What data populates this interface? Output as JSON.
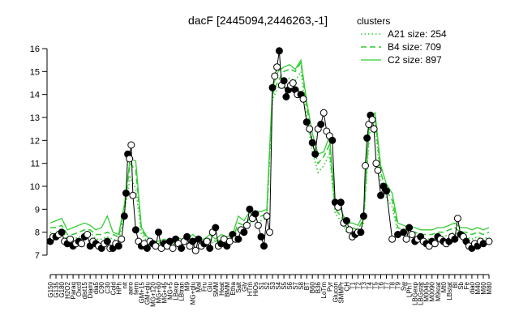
{
  "chart_data": {
    "type": "line",
    "title": "dacF [2445094,2446263,-1]",
    "xlabel": "",
    "ylabel": "",
    "ylim": [
      7,
      16
    ],
    "yticks": [
      7,
      8,
      9,
      10,
      11,
      12,
      13,
      14,
      15,
      16
    ],
    "grid": false,
    "legend_position": "top-right",
    "legend_title": "clusters",
    "colors": {
      "series": "#33cc33",
      "point_fill": "#000000",
      "point_hollow": "#ffffff",
      "axis": "#000000"
    },
    "x_tick_labels": [
      "G150",
      "G135",
      "G180",
      "H2O2",
      "Paraq",
      "Oxctl",
      "dist15",
      "Diami",
      "dia5",
      "C90",
      "C30",
      "Cold",
      "HPh",
      "nit",
      "aero",
      "ferm",
      "GM+15",
      "GM+glu",
      "MG+120",
      "MG+60",
      "MG+45",
      "MG+5",
      "LBexp",
      "LBtran",
      "M9",
      "MG+glu",
      "Mal",
      "Fru",
      "Glu",
      "SMM",
      "Heat",
      "BMM",
      "Etha",
      "Salt",
      "Gly",
      "HTm",
      "HiOs",
      "S1",
      "S2",
      "S3",
      "S4",
      "S5",
      "S6",
      "S7",
      "S8",
      "BT",
      "B60",
      "B36",
      "LoTm",
      "Pyr",
      "Glucon",
      "SMMPr",
      "CH",
      "T1",
      "T2",
      "T3",
      "T4",
      "T5",
      "T6",
      "T7",
      "T8",
      "T9",
      "Sw",
      "LPhT",
      "LBGexp",
      "LBGstat",
      "M0045",
      "M0090",
      "M9stat",
      "Mt0",
      "LBstat",
      "BI",
      "Sb",
      "Fe",
      "dia0",
      "M40",
      "M60",
      "M80"
    ],
    "series": [
      {
        "name": "A21 size: 254",
        "style": "dotted",
        "values": [
          8.0,
          7.9,
          8.1,
          7.7,
          7.7,
          7.8,
          7.9,
          8.0,
          7.7,
          7.7,
          7.8,
          7.7,
          7.6,
          8.8,
          10.4,
          9.9,
          7.9,
          7.6,
          7.4,
          7.4,
          7.5,
          7.4,
          7.5,
          7.5,
          7.5,
          7.6,
          7.5,
          7.5,
          7.6,
          7.5,
          7.6,
          7.6,
          7.6,
          8.2,
          8.1,
          8.4,
          8.5,
          8.5,
          8.6,
          13.8,
          14.3,
          14.6,
          14.7,
          14.6,
          15.0,
          13.0,
          11.5,
          10.6,
          10.9,
          11.4,
          8.8,
          8.5,
          8.0,
          8.0,
          7.9,
          8.4,
          12.3,
          12.7,
          10.2,
          9.5,
          9.1,
          8.0,
          7.9,
          7.8,
          7.8,
          7.7,
          7.7,
          7.7,
          7.8,
          7.8,
          7.9,
          8.0,
          7.8,
          7.8,
          7.7,
          7.8,
          7.7,
          7.8
        ]
      },
      {
        "name": "B4 size: 709",
        "style": "dashed",
        "values": [
          8.2,
          8.2,
          8.3,
          7.9,
          7.9,
          8.0,
          8.1,
          8.1,
          7.9,
          7.9,
          8.0,
          7.9,
          7.8,
          9.0,
          11.0,
          10.7,
          8.1,
          7.7,
          7.5,
          7.5,
          7.6,
          7.5,
          7.6,
          7.6,
          7.6,
          7.7,
          7.6,
          7.6,
          7.7,
          7.6,
          7.7,
          7.7,
          7.7,
          8.4,
          8.3,
          8.6,
          8.7,
          8.7,
          8.8,
          14.0,
          14.6,
          15.0,
          15.1,
          15.0,
          15.4,
          13.5,
          11.9,
          11.0,
          11.3,
          11.8,
          9.0,
          8.7,
          8.2,
          8.2,
          8.1,
          8.6,
          12.6,
          13.0,
          10.6,
          9.8,
          9.4,
          8.2,
          8.1,
          8.0,
          8.0,
          7.9,
          7.9,
          7.9,
          8.0,
          8.0,
          8.1,
          8.2,
          8.0,
          8.0,
          7.9,
          8.0,
          7.9,
          8.0
        ]
      },
      {
        "name": "C2 size: 897",
        "style": "solid",
        "values": [
          8.4,
          8.5,
          8.6,
          8.1,
          8.2,
          8.3,
          8.4,
          8.3,
          8.1,
          8.2,
          8.7,
          8.0,
          7.9,
          9.2,
          11.2,
          11.1,
          8.2,
          7.8,
          7.6,
          7.6,
          7.7,
          7.6,
          7.8,
          7.7,
          7.7,
          7.9,
          7.7,
          7.7,
          7.9,
          7.7,
          7.9,
          7.8,
          7.9,
          8.7,
          8.5,
          8.9,
          8.9,
          8.9,
          9.0,
          14.3,
          15.0,
          15.2,
          15.3,
          15.1,
          15.5,
          13.7,
          12.3,
          11.4,
          11.5,
          12.2,
          9.2,
          9.0,
          8.4,
          8.4,
          8.3,
          8.8,
          12.9,
          13.2,
          10.9,
          10.1,
          9.7,
          8.4,
          8.3,
          8.2,
          8.2,
          8.1,
          8.1,
          8.1,
          8.2,
          8.2,
          8.3,
          8.4,
          8.2,
          8.2,
          8.1,
          8.2,
          8.1,
          8.2
        ]
      }
    ],
    "points": [
      {
        "x": 0,
        "y": 7.6,
        "f": 1
      },
      {
        "x": 0.5,
        "y": 7.8,
        "f": 0
      },
      {
        "x": 1,
        "y": 7.8,
        "f": 1
      },
      {
        "x": 1.5,
        "y": 7.9,
        "f": 0
      },
      {
        "x": 2,
        "y": 8.0,
        "f": 1
      },
      {
        "x": 2.5,
        "y": 7.6,
        "f": 0
      },
      {
        "x": 3,
        "y": 7.5,
        "f": 1
      },
      {
        "x": 3.5,
        "y": 7.7,
        "f": 0
      },
      {
        "x": 4,
        "y": 7.4,
        "f": 1
      },
      {
        "x": 4.5,
        "y": 7.5,
        "f": 0
      },
      {
        "x": 5,
        "y": 7.6,
        "f": 1
      },
      {
        "x": 5.5,
        "y": 7.5,
        "f": 0
      },
      {
        "x": 6,
        "y": 7.8,
        "f": 1
      },
      {
        "x": 6.5,
        "y": 7.9,
        "f": 0
      },
      {
        "x": 7,
        "y": 7.4,
        "f": 1
      },
      {
        "x": 7.5,
        "y": 7.6,
        "f": 0
      },
      {
        "x": 8,
        "y": 7.5,
        "f": 1
      },
      {
        "x": 8.5,
        "y": 7.4,
        "f": 0
      },
      {
        "x": 9,
        "y": 7.3,
        "f": 1
      },
      {
        "x": 9.5,
        "y": 7.5,
        "f": 0
      },
      {
        "x": 10,
        "y": 7.6,
        "f": 1
      },
      {
        "x": 10.5,
        "y": 7.3,
        "f": 0
      },
      {
        "x": 11,
        "y": 7.3,
        "f": 1
      },
      {
        "x": 11.5,
        "y": 7.5,
        "f": 0
      },
      {
        "x": 12,
        "y": 7.4,
        "f": 1
      },
      {
        "x": 12.5,
        "y": 7.7,
        "f": 0
      },
      {
        "x": 13,
        "y": 8.7,
        "f": 1
      },
      {
        "x": 13.3,
        "y": 9.7,
        "f": 1
      },
      {
        "x": 13.6,
        "y": 11.4,
        "f": 1
      },
      {
        "x": 13.9,
        "y": 11.2,
        "f": 0
      },
      {
        "x": 14.2,
        "y": 11.8,
        "f": 0
      },
      {
        "x": 14.5,
        "y": 9.6,
        "f": 0
      },
      {
        "x": 15,
        "y": 8.1,
        "f": 1
      },
      {
        "x": 15.5,
        "y": 7.6,
        "f": 0
      },
      {
        "x": 16,
        "y": 7.4,
        "f": 1
      },
      {
        "x": 16.5,
        "y": 7.5,
        "f": 0
      },
      {
        "x": 17,
        "y": 7.3,
        "f": 1
      },
      {
        "x": 17.5,
        "y": 7.6,
        "f": 0
      },
      {
        "x": 18,
        "y": 7.5,
        "f": 1
      },
      {
        "x": 18.5,
        "y": 7.4,
        "f": 0
      },
      {
        "x": 19,
        "y": 8.0,
        "f": 1
      },
      {
        "x": 19.5,
        "y": 7.3,
        "f": 0
      },
      {
        "x": 20,
        "y": 7.5,
        "f": 1
      },
      {
        "x": 20.5,
        "y": 7.4,
        "f": 0
      },
      {
        "x": 21,
        "y": 7.6,
        "f": 1
      },
      {
        "x": 21.5,
        "y": 7.3,
        "f": 0
      },
      {
        "x": 22,
        "y": 7.7,
        "f": 1
      },
      {
        "x": 22.5,
        "y": 7.5,
        "f": 0
      },
      {
        "x": 23,
        "y": 7.3,
        "f": 1
      },
      {
        "x": 23.5,
        "y": 7.6,
        "f": 0
      },
      {
        "x": 24,
        "y": 7.8,
        "f": 1
      },
      {
        "x": 24.5,
        "y": 7.4,
        "f": 0
      },
      {
        "x": 25,
        "y": 7.6,
        "f": 1
      },
      {
        "x": 25.5,
        "y": 7.2,
        "f": 0
      },
      {
        "x": 26,
        "y": 7.7,
        "f": 1
      },
      {
        "x": 26.5,
        "y": 7.4,
        "f": 0
      },
      {
        "x": 27,
        "y": 7.5,
        "f": 1
      },
      {
        "x": 27.5,
        "y": 7.6,
        "f": 0
      },
      {
        "x": 28,
        "y": 7.3,
        "f": 1
      },
      {
        "x": 28.5,
        "y": 8.0,
        "f": 0
      },
      {
        "x": 29,
        "y": 8.2,
        "f": 1
      },
      {
        "x": 29.5,
        "y": 7.4,
        "f": 0
      },
      {
        "x": 30,
        "y": 7.5,
        "f": 1
      },
      {
        "x": 30.5,
        "y": 7.7,
        "f": 0
      },
      {
        "x": 31,
        "y": 7.4,
        "f": 1
      },
      {
        "x": 31.5,
        "y": 7.6,
        "f": 0
      },
      {
        "x": 32,
        "y": 7.9,
        "f": 1
      },
      {
        "x": 32.5,
        "y": 7.7,
        "f": 0
      },
      {
        "x": 33,
        "y": 7.7,
        "f": 1
      },
      {
        "x": 33.5,
        "y": 8.1,
        "f": 0
      },
      {
        "x": 34,
        "y": 8.0,
        "f": 1
      },
      {
        "x": 34.5,
        "y": 8.3,
        "f": 0
      },
      {
        "x": 35,
        "y": 9.0,
        "f": 1
      },
      {
        "x": 35.5,
        "y": 8.6,
        "f": 0
      },
      {
        "x": 36,
        "y": 8.8,
        "f": 1
      },
      {
        "x": 36.5,
        "y": 8.3,
        "f": 0
      },
      {
        "x": 37,
        "y": 7.8,
        "f": 1
      },
      {
        "x": 37.5,
        "y": 7.4,
        "f": 1
      },
      {
        "x": 38,
        "y": 8.7,
        "f": 0
      },
      {
        "x": 38.5,
        "y": 8.0,
        "f": 0
      },
      {
        "x": 39,
        "y": 14.3,
        "f": 1
      },
      {
        "x": 39.4,
        "y": 14.8,
        "f": 0
      },
      {
        "x": 39.8,
        "y": 15.2,
        "f": 0
      },
      {
        "x": 40.2,
        "y": 15.9,
        "f": 1
      },
      {
        "x": 40.6,
        "y": 14.4,
        "f": 0
      },
      {
        "x": 41,
        "y": 14.6,
        "f": 1
      },
      {
        "x": 41.4,
        "y": 13.9,
        "f": 1
      },
      {
        "x": 41.8,
        "y": 14.2,
        "f": 1
      },
      {
        "x": 42.2,
        "y": 14.4,
        "f": 0
      },
      {
        "x": 42.6,
        "y": 14.5,
        "f": 0
      },
      {
        "x": 43,
        "y": 14.2,
        "f": 1
      },
      {
        "x": 43.4,
        "y": 14.0,
        "f": 0
      },
      {
        "x": 44,
        "y": 14.0,
        "f": 1
      },
      {
        "x": 44.4,
        "y": 13.8,
        "f": 0
      },
      {
        "x": 45,
        "y": 12.8,
        "f": 1
      },
      {
        "x": 45.5,
        "y": 12.5,
        "f": 0
      },
      {
        "x": 46,
        "y": 11.9,
        "f": 1
      },
      {
        "x": 46.5,
        "y": 11.4,
        "f": 1
      },
      {
        "x": 47,
        "y": 12.5,
        "f": 0
      },
      {
        "x": 47.5,
        "y": 12.7,
        "f": 1
      },
      {
        "x": 48,
        "y": 13.2,
        "f": 0
      },
      {
        "x": 48.5,
        "y": 12.4,
        "f": 0
      },
      {
        "x": 49,
        "y": 12.2,
        "f": 0
      },
      {
        "x": 49.5,
        "y": 12.0,
        "f": 1
      },
      {
        "x": 50,
        "y": 9.3,
        "f": 1
      },
      {
        "x": 50.5,
        "y": 9.1,
        "f": 0
      },
      {
        "x": 51,
        "y": 9.3,
        "f": 1
      },
      {
        "x": 51.5,
        "y": 8.4,
        "f": 0
      },
      {
        "x": 52,
        "y": 8.5,
        "f": 1
      },
      {
        "x": 52.5,
        "y": 8.1,
        "f": 0
      },
      {
        "x": 53,
        "y": 7.8,
        "f": 0
      },
      {
        "x": 53.5,
        "y": 7.9,
        "f": 1
      },
      {
        "x": 54,
        "y": 8.0,
        "f": 0
      },
      {
        "x": 54.5,
        "y": 8.0,
        "f": 1
      },
      {
        "x": 55,
        "y": 8.7,
        "f": 1
      },
      {
        "x": 55.3,
        "y": 10.9,
        "f": 0
      },
      {
        "x": 55.6,
        "y": 12.1,
        "f": 1
      },
      {
        "x": 55.9,
        "y": 12.7,
        "f": 0
      },
      {
        "x": 56.2,
        "y": 13.1,
        "f": 1
      },
      {
        "x": 56.5,
        "y": 12.9,
        "f": 0
      },
      {
        "x": 56.8,
        "y": 12.5,
        "f": 0
      },
      {
        "x": 57.2,
        "y": 11.0,
        "f": 0
      },
      {
        "x": 57.5,
        "y": 10.7,
        "f": 0
      },
      {
        "x": 58,
        "y": 9.6,
        "f": 1
      },
      {
        "x": 58.5,
        "y": 10.0,
        "f": 1
      },
      {
        "x": 59,
        "y": 9.8,
        "f": 1
      },
      {
        "x": 60,
        "y": 7.7,
        "f": 0
      },
      {
        "x": 61,
        "y": 7.9,
        "f": 1
      },
      {
        "x": 62,
        "y": 8.0,
        "f": 1
      },
      {
        "x": 62.5,
        "y": 7.7,
        "f": 0
      },
      {
        "x": 63,
        "y": 8.2,
        "f": 1
      },
      {
        "x": 63.5,
        "y": 7.9,
        "f": 0
      },
      {
        "x": 64,
        "y": 7.6,
        "f": 1
      },
      {
        "x": 64.5,
        "y": 7.7,
        "f": 0
      },
      {
        "x": 65,
        "y": 7.8,
        "f": 1
      },
      {
        "x": 65.5,
        "y": 7.6,
        "f": 0
      },
      {
        "x": 66,
        "y": 7.5,
        "f": 1
      },
      {
        "x": 66.5,
        "y": 7.4,
        "f": 0
      },
      {
        "x": 67,
        "y": 7.6,
        "f": 1
      },
      {
        "x": 67.5,
        "y": 7.5,
        "f": 0
      },
      {
        "x": 68,
        "y": 7.8,
        "f": 1
      },
      {
        "x": 68.5,
        "y": 7.7,
        "f": 0
      },
      {
        "x": 69,
        "y": 7.6,
        "f": 1
      },
      {
        "x": 69.5,
        "y": 7.5,
        "f": 0
      },
      {
        "x": 70,
        "y": 7.6,
        "f": 1
      },
      {
        "x": 70.5,
        "y": 7.8,
        "f": 0
      },
      {
        "x": 71,
        "y": 7.7,
        "f": 1
      },
      {
        "x": 71.5,
        "y": 8.6,
        "f": 0
      },
      {
        "x": 72,
        "y": 7.9,
        "f": 1
      },
      {
        "x": 72.5,
        "y": 7.8,
        "f": 0
      },
      {
        "x": 73,
        "y": 7.6,
        "f": 1
      },
      {
        "x": 73.5,
        "y": 7.4,
        "f": 0
      },
      {
        "x": 74,
        "y": 7.3,
        "f": 1
      },
      {
        "x": 74.5,
        "y": 7.5,
        "f": 0
      },
      {
        "x": 75,
        "y": 7.4,
        "f": 1
      },
      {
        "x": 75.5,
        "y": 7.6,
        "f": 0
      },
      {
        "x": 76,
        "y": 7.5,
        "f": 1
      },
      {
        "x": 77,
        "y": 7.6,
        "f": 0
      }
    ]
  }
}
